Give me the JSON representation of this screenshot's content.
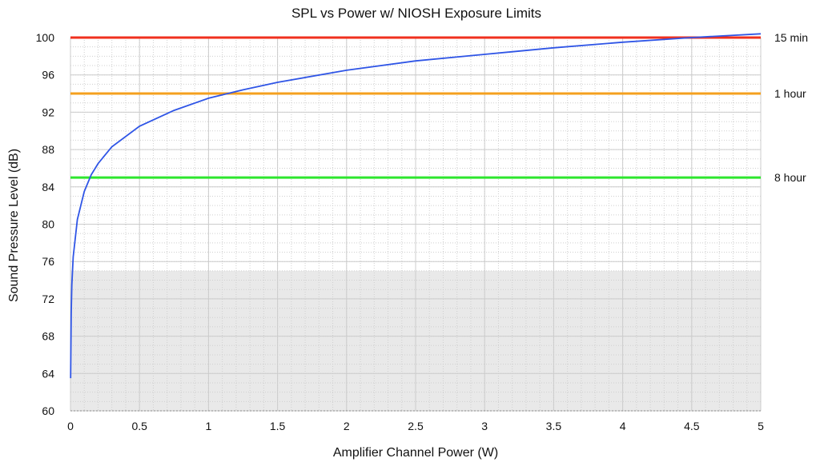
{
  "chart_data": {
    "type": "line",
    "title": "SPL vs Power w/ NIOSH Exposure Limits",
    "xlabel": "Amplifier Channel Power (W)",
    "ylabel": "Sound Pressure Level (dB)",
    "xlim": [
      0,
      5
    ],
    "ylim": [
      60,
      100
    ],
    "x_ticks": [
      "0",
      "0.5",
      "1",
      "1.5",
      "2",
      "2.5",
      "3",
      "3.5",
      "4",
      "4.5",
      "5"
    ],
    "y_ticks": [
      "60",
      "64",
      "68",
      "72",
      "76",
      "80",
      "84",
      "88",
      "92",
      "96",
      "100"
    ],
    "grid": true,
    "shaded_region": {
      "y_from": 60,
      "y_to": 75,
      "color": "#e9e9e9"
    },
    "series": [
      {
        "color": "#2f55e6",
        "x": [
          0.001,
          0.005,
          0.01,
          0.02,
          0.05,
          0.1,
          0.15,
          0.2,
          0.3,
          0.5,
          0.75,
          1.0,
          1.25,
          1.5,
          2.0,
          2.5,
          3.0,
          3.5,
          4.0,
          4.5,
          5.0
        ],
        "y": [
          63.5,
          70.4,
          73.5,
          76.5,
          80.5,
          83.5,
          85.3,
          86.5,
          88.3,
          90.5,
          92.2,
          93.5,
          94.4,
          95.2,
          96.5,
          97.5,
          98.2,
          98.9,
          99.5,
          100.0,
          100.4
        ]
      }
    ],
    "limits": [
      {
        "value": 100,
        "label": "15 min",
        "color": "#f0301e"
      },
      {
        "value": 94,
        "label": "1 hour",
        "color": "#f5a01e"
      },
      {
        "value": 85,
        "label": "8 hour",
        "color": "#2ee62e"
      }
    ]
  }
}
